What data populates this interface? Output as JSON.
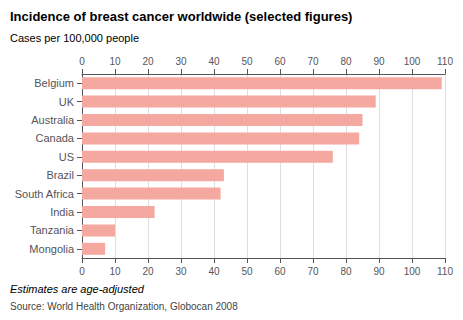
{
  "chart_data": {
    "type": "bar",
    "orientation": "horizontal",
    "title": "Incidence of breast cancer worldwide (selected figures)",
    "subtitle": "Cases per 100,000 people",
    "annotations": [
      "Estimates are age-adjusted",
      "Source: World Health Organization, Globocan 2008"
    ],
    "categories": [
      "Mongolia",
      "Tanzania",
      "India",
      "South Africa",
      "Brazil",
      "US",
      "Canada",
      "Australia",
      "UK",
      "Belgium"
    ],
    "values": [
      7,
      10,
      22,
      42,
      43,
      76,
      84,
      85,
      89,
      109
    ],
    "color": "#f5a8a0",
    "xlim": [
      0,
      110
    ],
    "xticks": [
      0,
      10,
      20,
      30,
      40,
      50,
      60,
      70,
      80,
      90,
      100,
      110
    ],
    "grid": true
  }
}
